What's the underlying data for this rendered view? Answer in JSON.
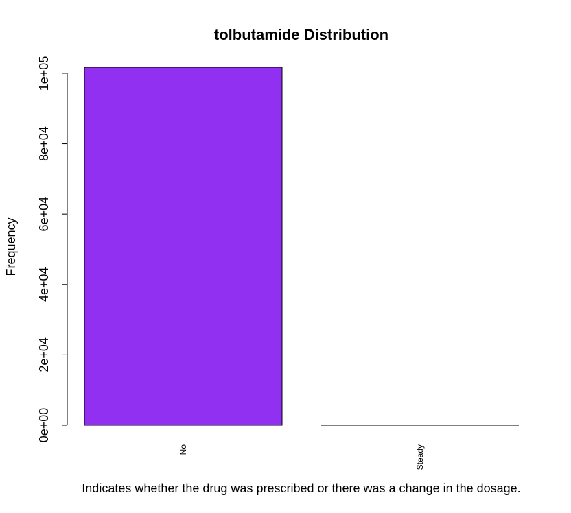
{
  "chart_data": {
    "type": "bar",
    "title": "tolbutamide Distribution",
    "xlabel": "Indicates whether the drug was prescribed or there was a change in the dosage.",
    "ylabel": "Frequency",
    "categories": [
      "No",
      "Steady"
    ],
    "values": [
      101743,
      23
    ],
    "yticks": [
      0,
      20000,
      40000,
      60000,
      80000,
      100000
    ],
    "ytick_labels": [
      "0e+00",
      "2e+04",
      "4e+04",
      "6e+04",
      "8e+04",
      "1e+05"
    ],
    "ylim": [
      0,
      101743
    ],
    "bar_colors": [
      "#9130F0",
      "#9130F0"
    ],
    "bar_border_color": "#000000",
    "grid": false,
    "legend": "none"
  }
}
